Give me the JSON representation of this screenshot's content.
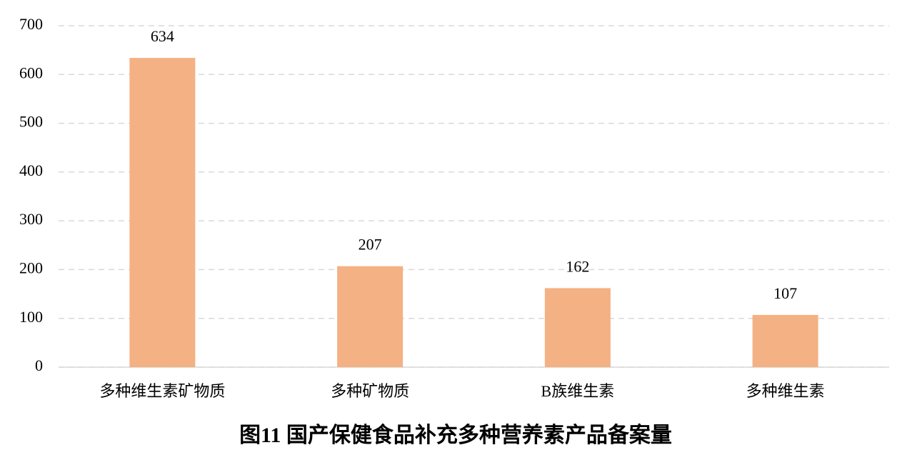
{
  "chart_data": {
    "type": "bar",
    "title": "图11  国产保健食品补充多种营养素产品备案量",
    "categories": [
      "多种维生素矿物质",
      "多种矿物质",
      "B族维生素",
      "多种维生素"
    ],
    "values": [
      634,
      207,
      162,
      107
    ],
    "color": "#f4b183",
    "ylim": [
      0,
      700
    ],
    "yticks": [
      0,
      100,
      200,
      300,
      400,
      500,
      600,
      700
    ],
    "grid": true
  }
}
